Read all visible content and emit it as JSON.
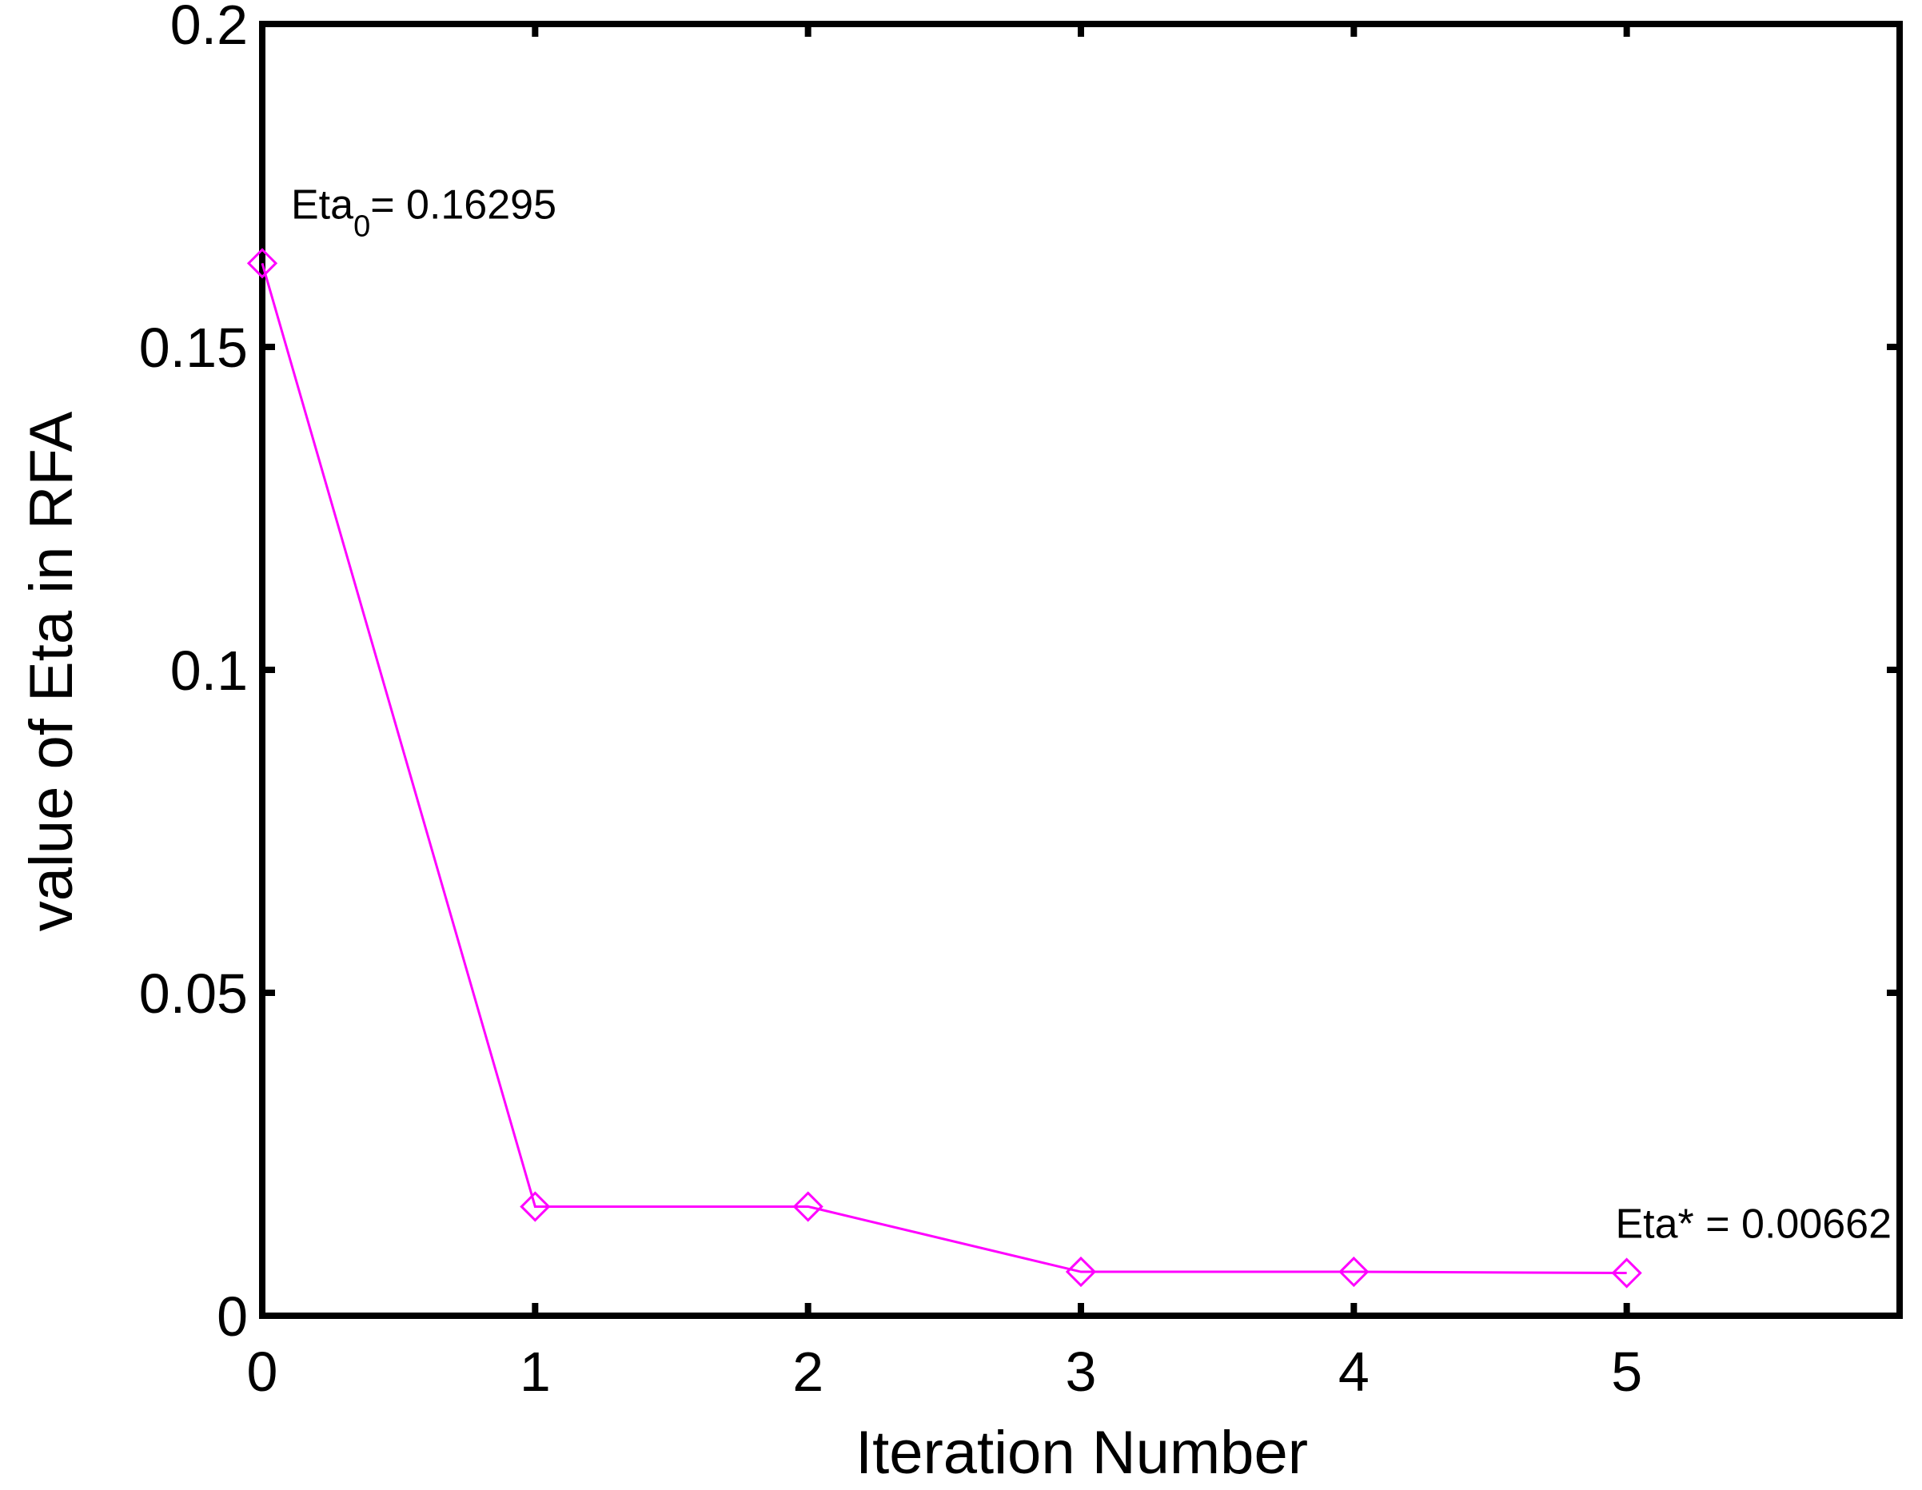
{
  "chart_data": {
    "type": "line",
    "xlabel": "Iteration Number",
    "ylabel": "value of Eta in RFA",
    "xlim": [
      0,
      6
    ],
    "ylim": [
      0,
      0.2
    ],
    "x_ticks": [
      0,
      1,
      2,
      3,
      4,
      5
    ],
    "x_tick_labels": [
      "0",
      "1",
      "2",
      "3",
      "4",
      "5"
    ],
    "y_ticks": [
      0,
      0.05,
      0.1,
      0.15,
      0.2
    ],
    "y_tick_labels": [
      "0",
      "0.05",
      "0.1",
      "0.15",
      "0.2"
    ],
    "grid": false,
    "series": [
      {
        "color": "#ff00ff",
        "marker": "diamond",
        "x": [
          0,
          1,
          2,
          3,
          4,
          5
        ],
        "y": [
          0.16295,
          0.0169,
          0.0169,
          0.0068,
          0.0068,
          0.00662
        ]
      }
    ],
    "annotations": [
      {
        "main": "Eta",
        "sub": "0",
        "rest": "= 0.16295",
        "x": 0,
        "y": 0.16295
      },
      {
        "main": "Eta* = 0.00662",
        "sub": "",
        "rest": "",
        "x": 5,
        "y": 0.00662
      }
    ]
  }
}
